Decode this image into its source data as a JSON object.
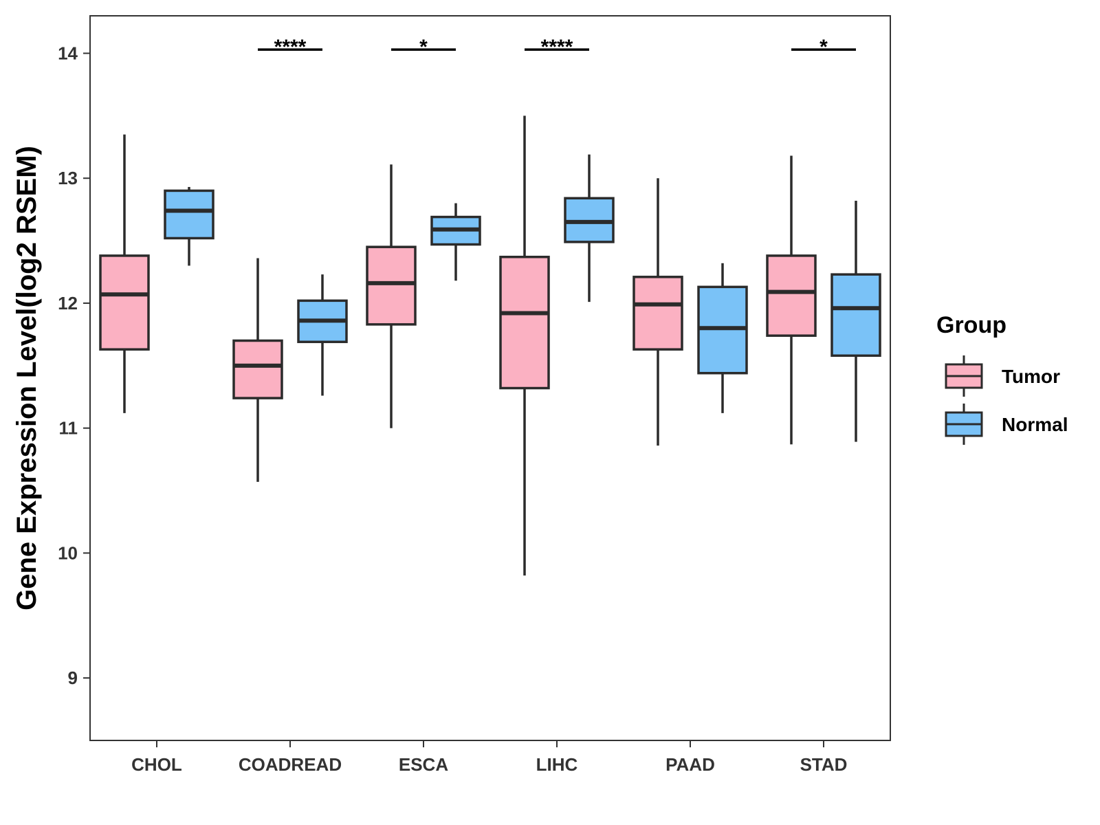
{
  "chart_data": {
    "type": "box",
    "title": "",
    "xlabel": "",
    "ylabel": "Gene Expression Level(log2 RSEM)",
    "ylim": [
      8.5,
      14.3
    ],
    "yticks": [
      9,
      10,
      11,
      12,
      13,
      14
    ],
    "grid": false,
    "legend": {
      "title": "Group",
      "placement": "right",
      "entries": [
        {
          "name": "Tumor",
          "color": "#FBB1C2"
        },
        {
          "name": "Normal",
          "color": "#7AC2F7"
        }
      ]
    },
    "categories": [
      "CHOL",
      "COADREAD",
      "ESCA",
      "LIHC",
      "PAAD",
      "STAD"
    ],
    "series": [
      {
        "name": "Tumor",
        "color": "#FBB1C2",
        "boxes": [
          {
            "min": 11.12,
            "q1": 11.63,
            "median": 12.07,
            "q3": 12.38,
            "max": 13.35
          },
          {
            "min": 10.57,
            "q1": 11.24,
            "median": 11.5,
            "q3": 11.7,
            "max": 12.36
          },
          {
            "min": 11.0,
            "q1": 11.83,
            "median": 12.16,
            "q3": 12.45,
            "max": 13.11
          },
          {
            "min": 9.82,
            "q1": 11.32,
            "median": 11.92,
            "q3": 12.37,
            "max": 13.5
          },
          {
            "min": 10.86,
            "q1": 11.63,
            "median": 11.99,
            "q3": 12.21,
            "max": 13.0
          },
          {
            "min": 10.87,
            "q1": 11.74,
            "median": 12.09,
            "q3": 12.38,
            "max": 13.18
          }
        ]
      },
      {
        "name": "Normal",
        "color": "#7AC2F7",
        "boxes": [
          {
            "min": 12.3,
            "q1": 12.52,
            "median": 12.74,
            "q3": 12.9,
            "max": 12.93
          },
          {
            "min": 11.26,
            "q1": 11.69,
            "median": 11.86,
            "q3": 12.02,
            "max": 12.23
          },
          {
            "min": 12.18,
            "q1": 12.47,
            "median": 12.59,
            "q3": 12.69,
            "max": 12.8
          },
          {
            "min": 12.01,
            "q1": 12.49,
            "median": 12.65,
            "q3": 12.84,
            "max": 13.19
          },
          {
            "min": 11.12,
            "q1": 11.44,
            "median": 11.8,
            "q3": 12.13,
            "max": 12.32
          },
          {
            "min": 10.89,
            "q1": 11.58,
            "median": 11.96,
            "q3": 12.23,
            "max": 12.82
          }
        ]
      }
    ],
    "annotations": [
      {
        "category": "CHOL",
        "label": ""
      },
      {
        "category": "COADREAD",
        "label": "****"
      },
      {
        "category": "ESCA",
        "label": "*"
      },
      {
        "category": "LIHC",
        "label": "****"
      },
      {
        "category": "PAAD",
        "label": ""
      },
      {
        "category": "STAD",
        "label": "*"
      }
    ],
    "annotation_y": 14.03
  }
}
